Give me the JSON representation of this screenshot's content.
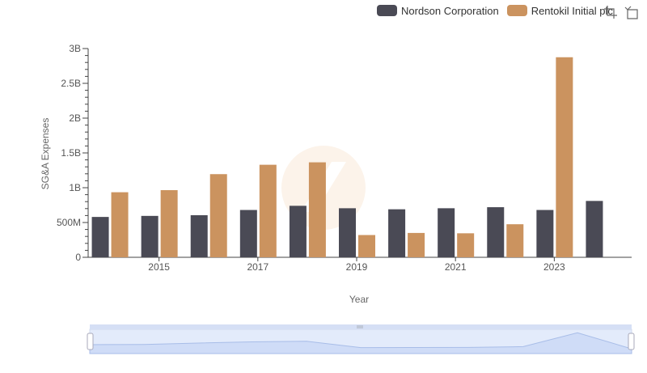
{
  "legend": {
    "items": [
      {
        "label": "Nordson Corporation",
        "color": "#4a4a55"
      },
      {
        "label": "Rentokil Initial plc",
        "color": "#cb935f"
      }
    ]
  },
  "toolbox": {
    "icons": [
      "zoom-icon",
      "restore-icon"
    ]
  },
  "chart_data": {
    "type": "bar",
    "categories": [
      "2014",
      "2015",
      "2016",
      "2017",
      "2018",
      "2019",
      "2020",
      "2021",
      "2022",
      "2023",
      "2024"
    ],
    "x_tick_labels": [
      "2015",
      "2017",
      "2019",
      "2021",
      "2023"
    ],
    "y_tick_labels": [
      "0",
      "500M",
      "1B",
      "1.5B",
      "2B",
      "2.5B",
      "3B"
    ],
    "ylim": [
      0,
      3000000000
    ],
    "xlabel": "Year",
    "ylabel": "SG&A Expenses",
    "series": [
      {
        "name": "Nordson Corporation",
        "color": "#4a4a55",
        "values": [
          580000000,
          595000000,
          605000000,
          680000000,
          740000000,
          705000000,
          690000000,
          705000000,
          720000000,
          680000000,
          810000000
        ]
      },
      {
        "name": "Rentokil Initial plc",
        "color": "#cb935f",
        "values": [
          935000000,
          965000000,
          1195000000,
          1330000000,
          1365000000,
          320000000,
          350000000,
          345000000,
          475000000,
          2875000000,
          null
        ]
      }
    ],
    "grid": false,
    "legend_position": "top-right",
    "datazoom": {
      "start": 0,
      "end": 100
    }
  }
}
